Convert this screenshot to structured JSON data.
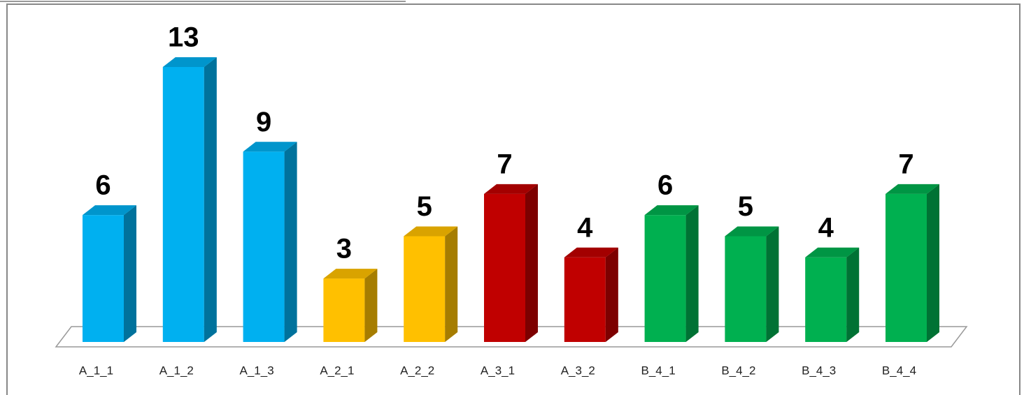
{
  "chart_data": {
    "type": "bar3d",
    "categories": [
      "A_1_1",
      "A_1_2",
      "A_1_3",
      "A_2_1",
      "A_2_2",
      "A_3_1",
      "A_3_2",
      "B_4_1",
      "B_4_2",
      "B_4_3",
      "B_4_4"
    ],
    "values": [
      6,
      13,
      9,
      3,
      5,
      7,
      4,
      6,
      5,
      4,
      7
    ],
    "colors": [
      "#00b0f0",
      "#00b0f0",
      "#00b0f0",
      "#ffc000",
      "#ffc000",
      "#c00000",
      "#c00000",
      "#00b050",
      "#00b050",
      "#00b050",
      "#00b050"
    ]
  }
}
